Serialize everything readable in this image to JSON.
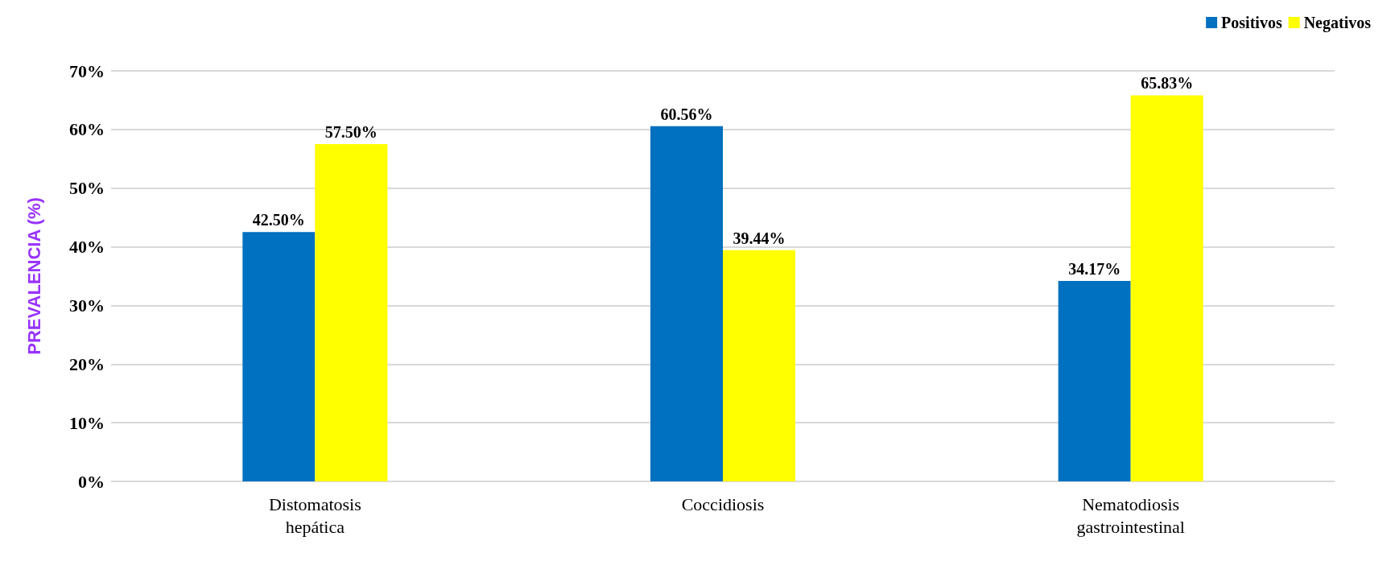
{
  "chart_data": {
    "type": "bar",
    "ylabel": "PREVALENCIA (%)",
    "categories": [
      "Distomatosis\nhepática",
      "Coccidiosis",
      "Nematodiosis\ngastrointestinal"
    ],
    "series": [
      {
        "name": "Positivos",
        "color": "#0070c0",
        "values": [
          42.5,
          60.56,
          34.17
        ],
        "value_labels": [
          "42.50%",
          "60.56%",
          "34.17%"
        ]
      },
      {
        "name": "Negativos",
        "color": "#ffff00",
        "values": [
          57.5,
          39.44,
          65.83
        ],
        "value_labels": [
          "57.50%",
          "39.44%",
          "65.83%"
        ]
      }
    ],
    "ylim": [
      0,
      70
    ],
    "yticks": [
      {
        "value": 0,
        "label": "0%"
      },
      {
        "value": 10,
        "label": "10%"
      },
      {
        "value": 20,
        "label": "20%"
      },
      {
        "value": 30,
        "label": "30%"
      },
      {
        "value": 40,
        "label": "40%"
      },
      {
        "value": 50,
        "label": "50%"
      },
      {
        "value": 60,
        "label": "60%"
      },
      {
        "value": 70,
        "label": "70%"
      }
    ],
    "grid": "y",
    "legend": "top right"
  }
}
